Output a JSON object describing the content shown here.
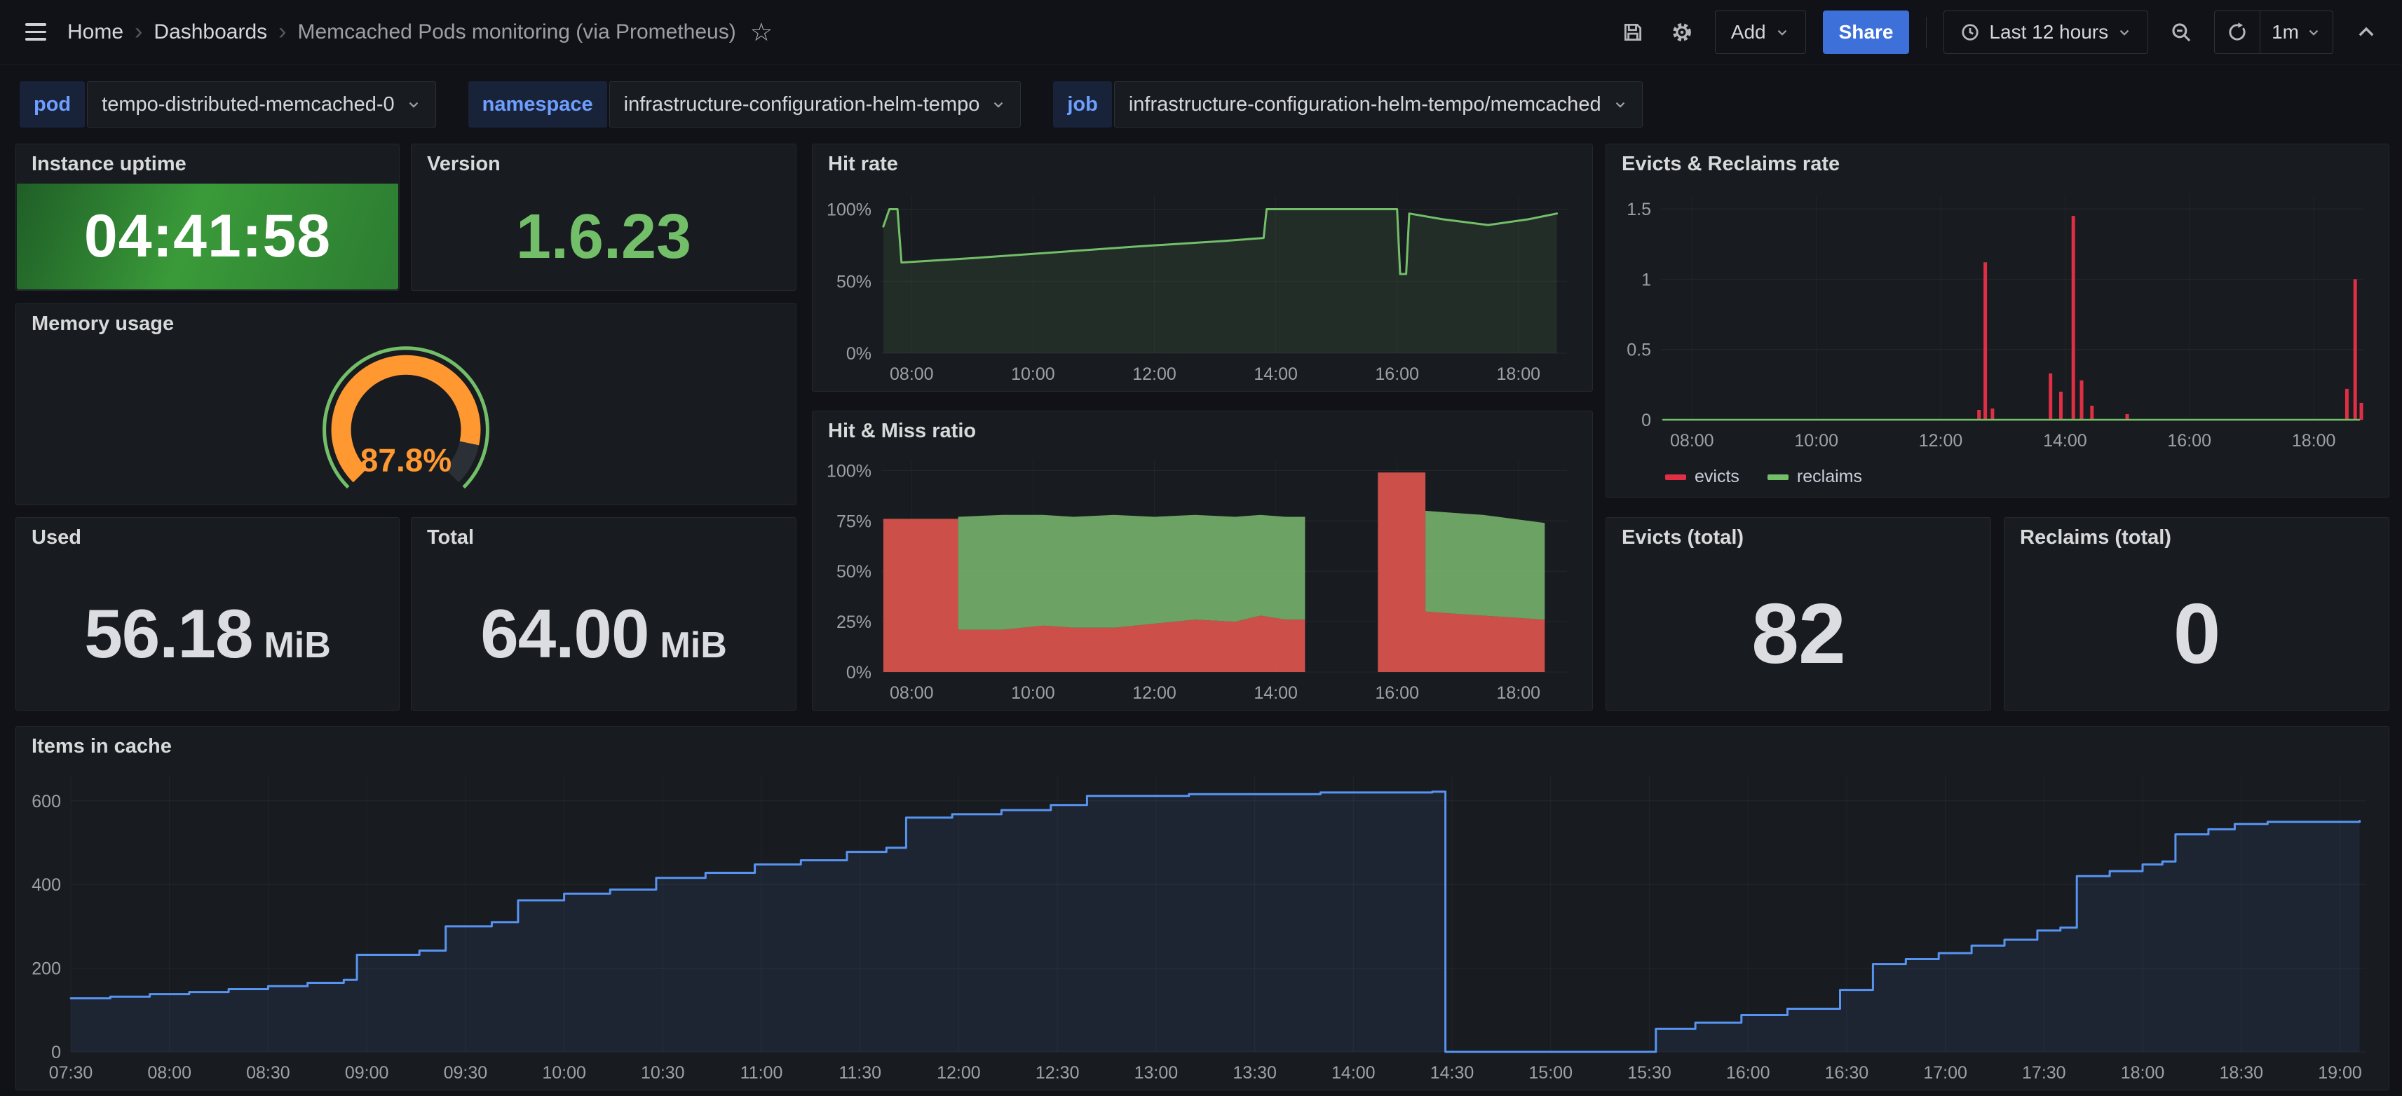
{
  "nav": {
    "breadcrumb": {
      "home": "Home",
      "section": "Dashboards",
      "title": "Memcached Pods monitoring (via Prometheus)"
    },
    "add_label": "Add",
    "share_label": "Share",
    "time_range": "Last 12 hours",
    "refresh_interval": "1m"
  },
  "variables": [
    {
      "label": "pod",
      "value": "tempo-distributed-memcached-0"
    },
    {
      "label": "namespace",
      "value": "infrastructure-configuration-helm-tempo"
    },
    {
      "label": "job",
      "value": "infrastructure-configuration-helm-tempo/memcached"
    }
  ],
  "panels": {
    "uptime": {
      "title": "Instance uptime",
      "value": "04:41:58"
    },
    "version": {
      "title": "Version",
      "value": "1.6.23"
    },
    "memory": {
      "title": "Memory usage",
      "value": "87.8%",
      "percent": 87.8
    },
    "hit_rate": {
      "title": "Hit rate"
    },
    "hit_miss": {
      "title": "Hit & Miss ratio"
    },
    "evicts_rate": {
      "title": "Evicts & Reclaims rate",
      "legend": [
        {
          "label": "evicts",
          "color": "#e02f44"
        },
        {
          "label": "reclaims",
          "color": "#73bf69"
        }
      ]
    },
    "used": {
      "title": "Used",
      "value": "56.18",
      "unit": "MiB"
    },
    "total": {
      "title": "Total",
      "value": "64.00",
      "unit": "MiB"
    },
    "evicts_total": {
      "title": "Evicts (total)",
      "value": "82"
    },
    "reclaims_total": {
      "title": "Reclaims (total)",
      "value": "0"
    },
    "items": {
      "title": "Items in cache"
    }
  },
  "colors": {
    "background": "#111217",
    "panel": "#181b1f",
    "accent_blue": "#3d71d9",
    "variable_label_blue": "#6e9fff",
    "green": "#73bf69",
    "orange": "#ff9830",
    "red": "#e02f44",
    "series_blue": "#5794f2"
  },
  "charts": {
    "hit_rate": {
      "type": "line",
      "margins": {
        "l": 92,
        "r": 30,
        "t": 16,
        "b": 46
      },
      "x": {
        "min": 450,
        "max": 1128,
        "ticks": [
          [
            480,
            "08:00"
          ],
          [
            600,
            "10:00"
          ],
          [
            720,
            "12:00"
          ],
          [
            840,
            "14:00"
          ],
          [
            960,
            "16:00"
          ],
          [
            1080,
            "18:00"
          ]
        ]
      },
      "y": {
        "min": 0,
        "max": 110,
        "ticks": [
          [
            0,
            "0%"
          ],
          [
            50,
            "50%"
          ],
          [
            100,
            "100%"
          ]
        ]
      },
      "series": [
        {
          "kind": "line",
          "color": "#73bf69",
          "width": 3,
          "fill": "rgba(115,191,105,0.11)",
          "points": [
            [
              452,
              88
            ],
            [
              458,
              100
            ],
            [
              466,
              100
            ],
            [
              470,
              63
            ],
            [
              540,
              66
            ],
            [
              620,
              70
            ],
            [
              700,
              74
            ],
            [
              790,
              78
            ],
            [
              828,
              80
            ],
            [
              831,
              100
            ],
            [
              960,
              100
            ],
            [
              963,
              55
            ],
            [
              969,
              55
            ],
            [
              972,
              97
            ],
            [
              1005,
              93
            ],
            [
              1050,
              89
            ],
            [
              1090,
              93
            ],
            [
              1118,
              97
            ]
          ]
        }
      ]
    },
    "evicts_rate": {
      "type": "bars",
      "margins": {
        "l": 72,
        "r": 30,
        "t": 16,
        "b": 46
      },
      "x": {
        "min": 450,
        "max": 1128,
        "ticks": [
          [
            480,
            "08:00"
          ],
          [
            600,
            "10:00"
          ],
          [
            720,
            "12:00"
          ],
          [
            840,
            "14:00"
          ],
          [
            960,
            "16:00"
          ],
          [
            1080,
            "18:00"
          ]
        ]
      },
      "y": {
        "min": 0,
        "max": 1.6,
        "ticks": [
          [
            0,
            "0"
          ],
          [
            0.5,
            "0.5"
          ],
          [
            1,
            "1"
          ],
          [
            1.5,
            "1.5"
          ]
        ]
      },
      "series": [
        {
          "kind": "bars",
          "color": "#e02f44",
          "barWidth": 5,
          "points": [
            [
              757,
              0.07
            ],
            [
              763,
              1.12
            ],
            [
              770,
              0.08
            ],
            [
              826,
              0.33
            ],
            [
              836,
              0.2
            ],
            [
              848,
              1.45
            ],
            [
              856,
              0.28
            ],
            [
              866,
              0.1
            ],
            [
              900,
              0.04
            ],
            [
              1112,
              0.22
            ],
            [
              1120,
              1.0
            ],
            [
              1126,
              0.12
            ]
          ]
        },
        {
          "kind": "line",
          "color": "#73bf69",
          "width": 2.5,
          "points": [
            [
              452,
              0
            ],
            [
              1124,
              0
            ]
          ]
        }
      ]
    },
    "hit_miss": {
      "type": "stacked-area",
      "margins": {
        "l": 92,
        "r": 30,
        "t": 14,
        "b": 46
      },
      "x": {
        "min": 450,
        "max": 1128,
        "ticks": [
          [
            480,
            "08:00"
          ],
          [
            600,
            "10:00"
          ],
          [
            720,
            "12:00"
          ],
          [
            840,
            "14:00"
          ],
          [
            960,
            "16:00"
          ],
          [
            1080,
            "18:00"
          ]
        ]
      },
      "y": {
        "min": 0,
        "max": 105,
        "ticks": [
          [
            0,
            "0%"
          ],
          [
            25,
            "25%"
          ],
          [
            50,
            "50%"
          ],
          [
            75,
            "75%"
          ],
          [
            100,
            "100%"
          ]
        ]
      },
      "stacked": {
        "colors": [
          "#e0564e",
          "#76b26b"
        ],
        "opacity": 0.9,
        "segments": [
          {
            "points": [
              [
                452,
                76,
                76
              ],
              [
                526,
                76,
                76
              ],
              [
                526,
                21,
                77
              ],
              [
                570,
                21,
                78
              ],
              [
                610,
                23,
                78
              ],
              [
                640,
                22,
                77
              ],
              [
                680,
                22,
                78
              ],
              [
                720,
                24,
                77
              ],
              [
                760,
                26,
                78
              ],
              [
                800,
                25,
                77
              ],
              [
                825,
                28,
                78
              ],
              [
                850,
                26,
                77
              ],
              [
                869,
                26,
                77
              ]
            ]
          },
          {
            "points": [
              [
                941,
                99,
                99
              ],
              [
                988,
                99,
                99
              ],
              [
                988,
                30,
                80
              ],
              [
                1015,
                29,
                79
              ],
              [
                1045,
                28,
                78
              ],
              [
                1075,
                27,
                76
              ],
              [
                1106,
                26,
                74
              ]
            ]
          }
        ]
      }
    },
    "items": {
      "type": "step-line",
      "margins": {
        "l": 72,
        "r": 26,
        "t": 14,
        "b": 46
      },
      "x": {
        "min": 450,
        "max": 1148,
        "ticks": [
          [
            450,
            "07:30"
          ],
          [
            480,
            "08:00"
          ],
          [
            510,
            "08:30"
          ],
          [
            540,
            "09:00"
          ],
          [
            570,
            "09:30"
          ],
          [
            600,
            "10:00"
          ],
          [
            630,
            "10:30"
          ],
          [
            660,
            "11:00"
          ],
          [
            690,
            "11:30"
          ],
          [
            720,
            "12:00"
          ],
          [
            750,
            "12:30"
          ],
          [
            780,
            "13:00"
          ],
          [
            810,
            "13:30"
          ],
          [
            840,
            "14:00"
          ],
          [
            870,
            "14:30"
          ],
          [
            900,
            "15:00"
          ],
          [
            930,
            "15:30"
          ],
          [
            960,
            "16:00"
          ],
          [
            990,
            "16:30"
          ],
          [
            1020,
            "17:00"
          ],
          [
            1050,
            "17:30"
          ],
          [
            1080,
            "18:00"
          ],
          [
            1110,
            "18:30"
          ],
          [
            1140,
            "19:00"
          ]
        ]
      },
      "y": {
        "min": 0,
        "max": 660,
        "ticks": [
          [
            0,
            "0"
          ],
          [
            200,
            "200"
          ],
          [
            400,
            "400"
          ],
          [
            600,
            "600"
          ]
        ]
      },
      "series": [
        {
          "kind": "line",
          "step": true,
          "color": "#5794f2",
          "width": 3,
          "fill": "rgba(87,148,242,0.09)",
          "points": [
            [
              450,
              128
            ],
            [
              462,
              132
            ],
            [
              474,
              138
            ],
            [
              486,
              143
            ],
            [
              498,
              150
            ],
            [
              510,
              157
            ],
            [
              522,
              165
            ],
            [
              533,
              172
            ],
            [
              537,
              232
            ],
            [
              556,
              242
            ],
            [
              564,
              300
            ],
            [
              578,
              310
            ],
            [
              586,
              362
            ],
            [
              600,
              378
            ],
            [
              614,
              388
            ],
            [
              628,
              416
            ],
            [
              643,
              428
            ],
            [
              658,
              448
            ],
            [
              672,
              458
            ],
            [
              686,
              478
            ],
            [
              698,
              488
            ],
            [
              704,
              560
            ],
            [
              718,
              568
            ],
            [
              733,
              578
            ],
            [
              748,
              590
            ],
            [
              759,
              612
            ],
            [
              790,
              616
            ],
            [
              830,
              620
            ],
            [
              864,
              622
            ],
            [
              868,
              0
            ],
            [
              928,
              0
            ],
            [
              932,
              55
            ],
            [
              944,
              70
            ],
            [
              958,
              88
            ],
            [
              972,
              103
            ],
            [
              988,
              148
            ],
            [
              998,
              210
            ],
            [
              1008,
              222
            ],
            [
              1018,
              236
            ],
            [
              1028,
              254
            ],
            [
              1038,
              268
            ],
            [
              1048,
              290
            ],
            [
              1055,
              297
            ],
            [
              1060,
              420
            ],
            [
              1070,
              432
            ],
            [
              1080,
              448
            ],
            [
              1086,
              455
            ],
            [
              1090,
              520
            ],
            [
              1100,
              532
            ],
            [
              1108,
              545
            ],
            [
              1118,
              550
            ],
            [
              1146,
              552
            ]
          ]
        }
      ]
    }
  }
}
